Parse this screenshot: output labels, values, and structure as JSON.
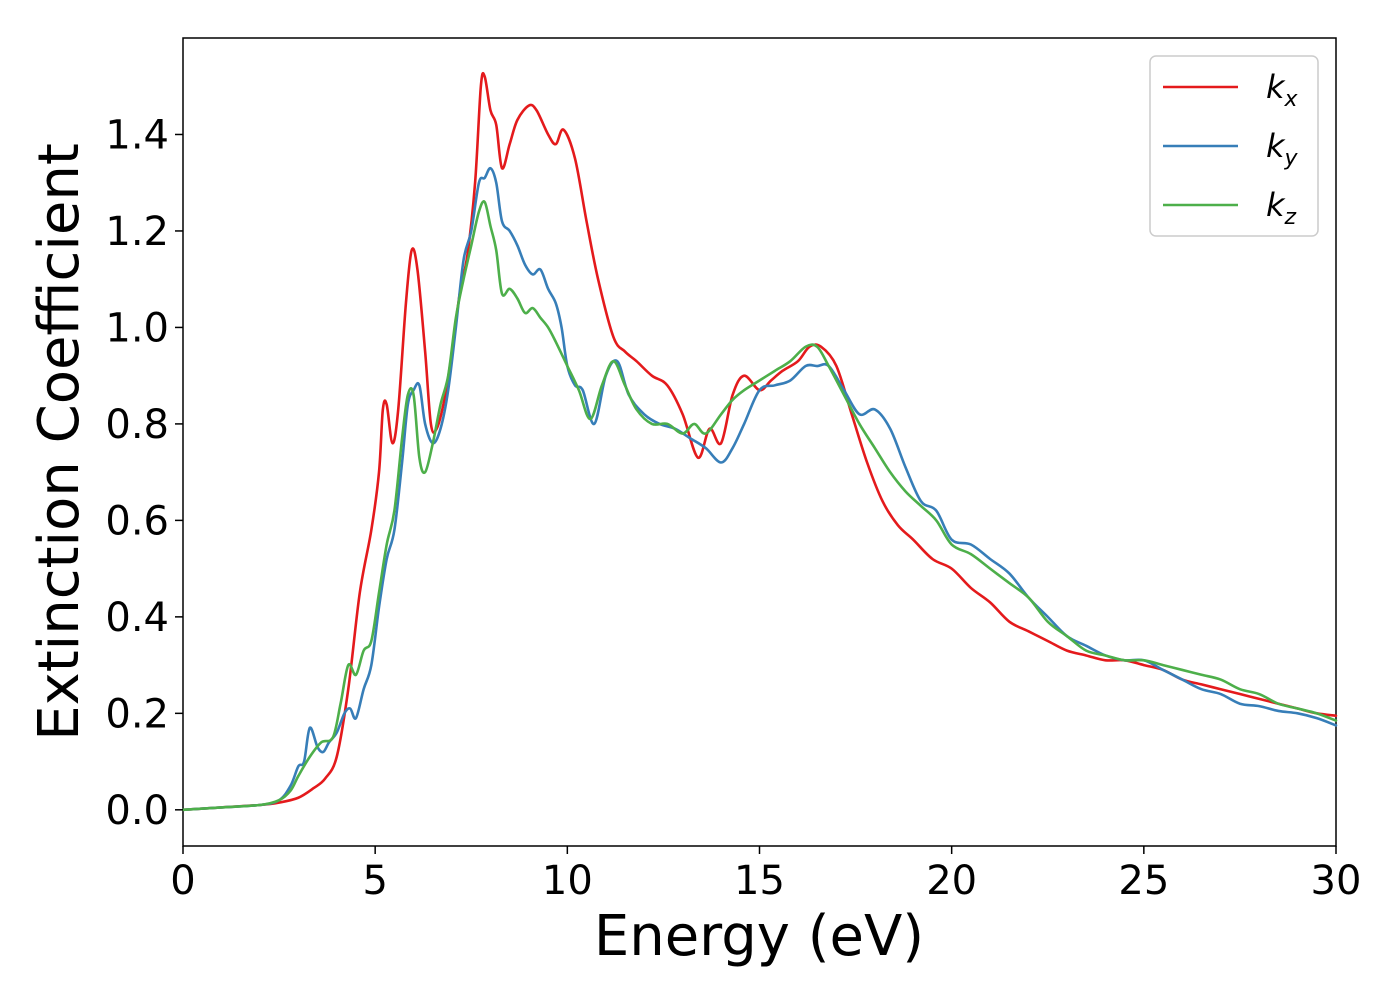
{
  "chart_data": {
    "type": "line",
    "title": "",
    "xlabel": "Energy (eV)",
    "ylabel": "Extinction Coefficient",
    "xlim": [
      0,
      30
    ],
    "ylim": [
      -0.075,
      1.6
    ],
    "xticks": [
      0,
      5,
      10,
      15,
      20,
      25,
      30
    ],
    "xtick_labels": [
      "0",
      "5",
      "10",
      "15",
      "20",
      "25",
      "30"
    ],
    "yticks": [
      0.0,
      0.2,
      0.4,
      0.6,
      0.8,
      1.0,
      1.2,
      1.4
    ],
    "ytick_labels": [
      "0.0",
      "0.2",
      "0.4",
      "0.6",
      "0.8",
      "1.0",
      "1.2",
      "1.4"
    ],
    "grid": false,
    "legend_position": "top-right",
    "series": [
      {
        "name": "k_x",
        "label_main": "k",
        "label_sub": "x",
        "color": "#e41a1c",
        "x": [
          0,
          1,
          2,
          2.5,
          3,
          3.4,
          3.7,
          4.0,
          4.3,
          4.6,
          4.9,
          5.1,
          5.2,
          5.3,
          5.45,
          5.6,
          5.8,
          5.95,
          6.1,
          6.3,
          6.45,
          6.6,
          6.8,
          7.0,
          7.2,
          7.4,
          7.6,
          7.75,
          7.85,
          8.0,
          8.15,
          8.3,
          8.5,
          8.7,
          9.0,
          9.2,
          9.5,
          9.7,
          9.9,
          10.2,
          10.5,
          10.8,
          11.2,
          11.5,
          11.8,
          12.2,
          12.6,
          13.0,
          13.4,
          13.7,
          14.0,
          14.3,
          14.6,
          15.0,
          15.3,
          15.6,
          16.0,
          16.3,
          16.6,
          17.0,
          17.4,
          17.8,
          18.2,
          18.6,
          19.0,
          19.5,
          20.0,
          20.5,
          21.0,
          21.5,
          22.0,
          22.5,
          23.0,
          23.5,
          24.0,
          24.5,
          25.0,
          25.5,
          26.0,
          26.5,
          27.0,
          27.5,
          28.0,
          28.5,
          29.0,
          29.5,
          30.0
        ],
        "y": [
          0.0,
          0.005,
          0.01,
          0.015,
          0.025,
          0.045,
          0.065,
          0.11,
          0.25,
          0.45,
          0.58,
          0.7,
          0.83,
          0.84,
          0.76,
          0.83,
          1.05,
          1.16,
          1.12,
          0.95,
          0.8,
          0.79,
          0.85,
          0.95,
          1.07,
          1.15,
          1.3,
          1.5,
          1.52,
          1.45,
          1.42,
          1.33,
          1.38,
          1.43,
          1.46,
          1.45,
          1.4,
          1.38,
          1.41,
          1.35,
          1.22,
          1.1,
          0.98,
          0.95,
          0.93,
          0.9,
          0.88,
          0.82,
          0.73,
          0.79,
          0.76,
          0.86,
          0.9,
          0.87,
          0.89,
          0.91,
          0.93,
          0.96,
          0.96,
          0.92,
          0.82,
          0.72,
          0.64,
          0.59,
          0.56,
          0.52,
          0.5,
          0.46,
          0.43,
          0.39,
          0.37,
          0.35,
          0.33,
          0.32,
          0.31,
          0.31,
          0.3,
          0.29,
          0.27,
          0.26,
          0.25,
          0.24,
          0.23,
          0.22,
          0.21,
          0.2,
          0.195
        ]
      },
      {
        "name": "k_y",
        "label_main": "k",
        "label_sub": "y",
        "color": "#377eb8",
        "x": [
          0,
          1,
          2,
          2.5,
          2.8,
          3.0,
          3.15,
          3.3,
          3.5,
          3.65,
          3.8,
          4.0,
          4.2,
          4.35,
          4.5,
          4.7,
          4.9,
          5.1,
          5.3,
          5.5,
          5.7,
          5.85,
          6.0,
          6.15,
          6.3,
          6.5,
          6.7,
          6.9,
          7.1,
          7.3,
          7.5,
          7.7,
          7.85,
          8.0,
          8.15,
          8.3,
          8.5,
          8.7,
          8.9,
          9.1,
          9.3,
          9.5,
          9.7,
          9.85,
          10.0,
          10.2,
          10.4,
          10.7,
          11.0,
          11.3,
          11.6,
          12.0,
          12.4,
          12.8,
          13.2,
          13.6,
          14.0,
          14.3,
          14.6,
          15.0,
          15.4,
          15.8,
          16.2,
          16.5,
          16.8,
          17.2,
          17.6,
          18.0,
          18.4,
          18.8,
          19.2,
          19.6,
          20.0,
          20.5,
          21.0,
          21.5,
          22.0,
          22.5,
          23.0,
          23.5,
          24.0,
          24.5,
          25.0,
          25.5,
          26.0,
          26.5,
          27.0,
          27.5,
          28.0,
          28.5,
          29.0,
          29.5,
          30.0
        ],
        "y": [
          0.0,
          0.005,
          0.01,
          0.02,
          0.05,
          0.09,
          0.1,
          0.17,
          0.13,
          0.12,
          0.14,
          0.16,
          0.2,
          0.21,
          0.19,
          0.25,
          0.3,
          0.42,
          0.52,
          0.58,
          0.72,
          0.84,
          0.87,
          0.88,
          0.8,
          0.76,
          0.79,
          0.87,
          1.0,
          1.14,
          1.2,
          1.3,
          1.31,
          1.33,
          1.3,
          1.22,
          1.2,
          1.17,
          1.13,
          1.11,
          1.12,
          1.08,
          1.05,
          1.0,
          0.92,
          0.88,
          0.87,
          0.8,
          0.9,
          0.93,
          0.86,
          0.82,
          0.8,
          0.79,
          0.77,
          0.75,
          0.72,
          0.75,
          0.8,
          0.87,
          0.88,
          0.89,
          0.92,
          0.92,
          0.92,
          0.87,
          0.82,
          0.83,
          0.79,
          0.71,
          0.64,
          0.62,
          0.56,
          0.55,
          0.52,
          0.49,
          0.44,
          0.4,
          0.36,
          0.34,
          0.32,
          0.31,
          0.31,
          0.29,
          0.27,
          0.25,
          0.24,
          0.22,
          0.215,
          0.205,
          0.2,
          0.19,
          0.175
        ]
      },
      {
        "name": "k_z",
        "label_main": "k",
        "label_sub": "z",
        "color": "#4daf4a",
        "x": [
          0,
          1,
          2,
          2.5,
          2.8,
          3.0,
          3.3,
          3.6,
          3.9,
          4.1,
          4.3,
          4.5,
          4.7,
          4.9,
          5.1,
          5.3,
          5.5,
          5.7,
          5.85,
          6.0,
          6.15,
          6.3,
          6.5,
          6.7,
          6.9,
          7.1,
          7.3,
          7.5,
          7.7,
          7.85,
          8.0,
          8.15,
          8.3,
          8.5,
          8.7,
          8.9,
          9.1,
          9.3,
          9.5,
          9.7,
          10.0,
          10.3,
          10.6,
          10.9,
          11.2,
          11.5,
          11.8,
          12.2,
          12.6,
          13.0,
          13.3,
          13.6,
          14.0,
          14.3,
          14.6,
          15.0,
          15.4,
          15.8,
          16.2,
          16.5,
          16.8,
          17.2,
          17.6,
          18.0,
          18.4,
          18.8,
          19.2,
          19.6,
          20.0,
          20.5,
          21.0,
          21.5,
          22.0,
          22.5,
          23.0,
          23.5,
          24.0,
          24.5,
          25.0,
          25.5,
          26.0,
          26.5,
          27.0,
          27.5,
          28.0,
          28.5,
          29.0,
          29.5,
          30.0
        ],
        "y": [
          0.0,
          0.005,
          0.01,
          0.02,
          0.04,
          0.07,
          0.11,
          0.14,
          0.15,
          0.22,
          0.3,
          0.28,
          0.33,
          0.35,
          0.45,
          0.55,
          0.62,
          0.77,
          0.86,
          0.86,
          0.73,
          0.7,
          0.76,
          0.84,
          0.9,
          1.02,
          1.1,
          1.17,
          1.24,
          1.26,
          1.21,
          1.16,
          1.07,
          1.08,
          1.06,
          1.03,
          1.04,
          1.02,
          1.0,
          0.97,
          0.92,
          0.87,
          0.81,
          0.88,
          0.93,
          0.88,
          0.83,
          0.8,
          0.8,
          0.78,
          0.8,
          0.78,
          0.82,
          0.85,
          0.87,
          0.89,
          0.91,
          0.93,
          0.96,
          0.96,
          0.92,
          0.86,
          0.8,
          0.75,
          0.7,
          0.66,
          0.63,
          0.6,
          0.55,
          0.53,
          0.5,
          0.47,
          0.44,
          0.39,
          0.36,
          0.33,
          0.32,
          0.31,
          0.31,
          0.3,
          0.29,
          0.28,
          0.27,
          0.25,
          0.24,
          0.22,
          0.21,
          0.2,
          0.185
        ]
      }
    ]
  }
}
